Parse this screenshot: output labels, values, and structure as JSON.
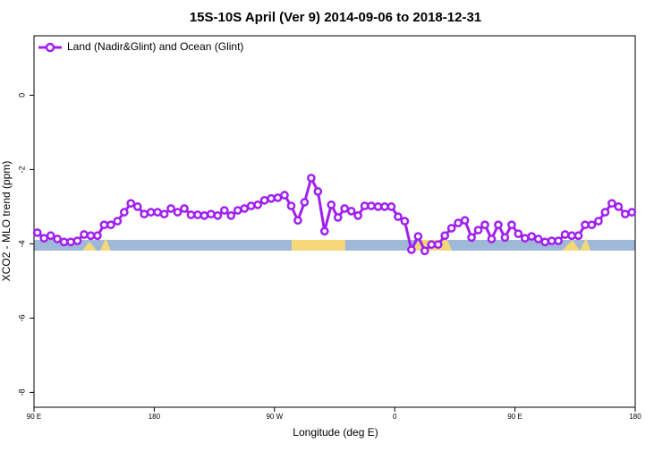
{
  "chart_data": {
    "type": "line",
    "title": "15S-10S April (Ver 9)   2014-09-06 to 2018-12-31",
    "xlabel": "Longitude (deg E)",
    "ylabel": "XCO2 - MLO trend (ppm)",
    "xlim": [
      90,
      540
    ],
    "ylim": [
      -8.4,
      1.6
    ],
    "xticks": [
      {
        "value": 90,
        "label": "90 E"
      },
      180,
      {
        "value": 270,
        "label": "90 W"
      },
      {
        "value": 360,
        "label": "0"
      },
      {
        "value": 450,
        "label": "90 E"
      },
      {
        "value": 540,
        "label": "180"
      }
    ],
    "yticks": [
      0,
      -2,
      -4,
      -6,
      -8
    ],
    "legend": "top-left",
    "x": [
      92.5,
      97.5,
      102.5,
      107.5,
      112.5,
      117.5,
      122.5,
      127.5,
      132.5,
      137.5,
      142.5,
      147.5,
      152.5,
      157.5,
      162.5,
      167.5,
      172.5,
      177.5,
      182.5,
      187.5,
      192.5,
      197.5,
      202.5,
      207.5,
      212.5,
      217.5,
      222.5,
      227.5,
      232.5,
      237.5,
      242.5,
      247.5,
      252.5,
      257.5,
      262.5,
      267.5,
      272.5,
      277.5,
      282.5,
      287.5,
      292.5,
      297.5,
      302.5,
      307.5,
      312.5,
      317.5,
      322.5,
      327.5,
      332.5,
      337.5,
      342.5,
      347.5,
      352.5,
      357.5,
      362.5,
      367.5,
      372.5,
      377.5,
      382.5,
      387.5,
      392.5,
      397.5,
      402.5,
      407.5,
      412.5,
      417.5,
      422.5,
      427.5,
      432.5,
      437.5,
      442.5,
      447.5,
      452.5,
      457.5,
      462.5,
      467.5,
      472.5,
      477.5,
      482.5,
      487.5,
      492.5,
      497.5,
      502.5,
      507.5,
      512.5,
      517.5,
      522.5,
      527.5,
      532.5,
      537.5
    ],
    "series": [
      {
        "name": "Land (Nadir&Glint) and Ocean (Glint)",
        "color": "#a020f0",
        "values": [
          -3.7,
          -3.85,
          -3.78,
          -3.87,
          -3.95,
          -3.95,
          -3.92,
          -3.75,
          -3.78,
          -3.78,
          -3.49,
          -3.49,
          -3.39,
          -3.15,
          -2.91,
          -3.0,
          -3.2,
          -3.15,
          -3.15,
          -3.2,
          -3.05,
          -3.15,
          -3.05,
          -3.22,
          -3.22,
          -3.24,
          -3.2,
          -3.24,
          -3.1,
          -3.24,
          -3.1,
          -3.05,
          -2.98,
          -2.95,
          -2.83,
          -2.78,
          -2.76,
          -2.69,
          -2.98,
          -3.37,
          -2.88,
          -2.23,
          -2.59,
          -3.66,
          -2.95,
          -3.29,
          -3.05,
          -3.12,
          -3.24,
          -2.98,
          -2.98,
          -3.0,
          -3.0,
          -3.0,
          -3.27,
          -3.39,
          -4.16,
          -3.8,
          -4.19,
          -4.02,
          -4.02,
          -3.78,
          -3.58,
          -3.44,
          -3.37,
          -3.83,
          -3.63,
          -3.49,
          -3.87,
          -3.49,
          -3.83,
          -3.49,
          -3.73,
          -3.85,
          -3.8,
          -3.87,
          -3.95,
          -3.92,
          -3.92,
          -3.75,
          -3.78,
          -3.78,
          -3.49,
          -3.49,
          -3.39,
          -3.15,
          -2.91,
          -3.0,
          -3.2,
          -3.15
        ]
      }
    ]
  }
}
